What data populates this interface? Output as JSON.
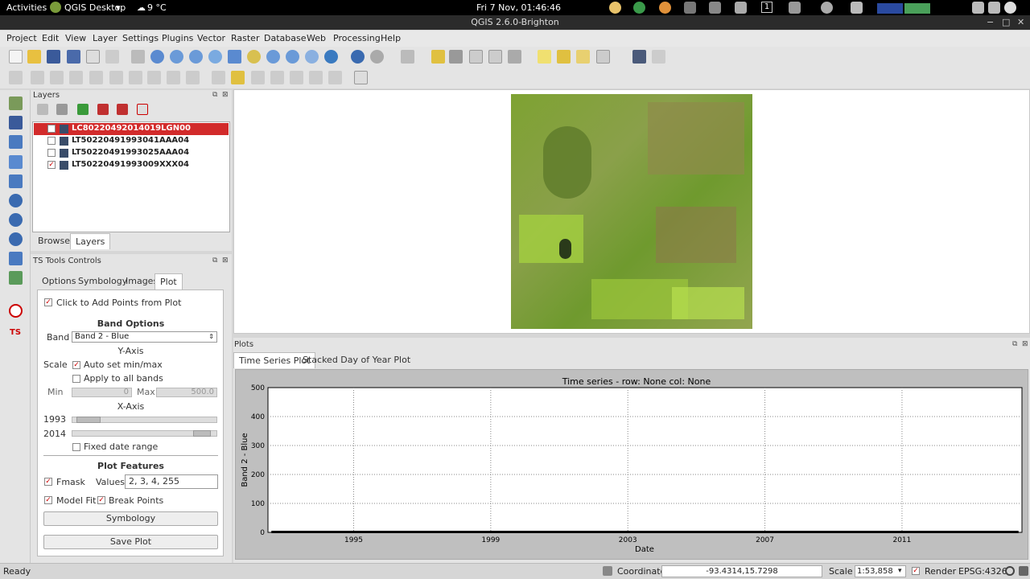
{
  "topbar": {
    "activities": "Activities",
    "app_menu": "QGIS Desktop",
    "weather": "9 °C",
    "clock": "Fri  7 Nov, 01:46:46",
    "workspace": "1"
  },
  "window": {
    "title": "QGIS 2.6.0-Brighton"
  },
  "menu": [
    "Project",
    "Edit",
    "View",
    "Layer",
    "Settings",
    "Plugins",
    "Vector",
    "Raster",
    "Database",
    "Web",
    "Processing",
    "Help"
  ],
  "layers_panel": {
    "title": "Layers",
    "items": [
      {
        "name": "LC80220492014019LGN00",
        "checked": false,
        "selected": true
      },
      {
        "name": "LT50220491993041AAA04",
        "checked": false,
        "selected": false
      },
      {
        "name": "LT50220491993025AAA04",
        "checked": false,
        "selected": false
      },
      {
        "name": "LT50220491993009XXX04",
        "checked": true,
        "selected": false
      }
    ],
    "tabs": [
      "Browser",
      "Layers"
    ]
  },
  "ts_tools": {
    "title": "TS Tools Controls",
    "tabs": [
      "Options",
      "Symbology",
      "Images",
      "Plot"
    ],
    "click_add_points": "Click to Add Points from Plot",
    "band_options": "Band Options",
    "band_label": "Band",
    "band_value": "Band 2 - Blue",
    "y_axis": "Y-Axis",
    "scale_label": "Scale",
    "auto_set": "Auto set min/max",
    "apply_all": "Apply to all bands",
    "min_label": "Min",
    "min_value": "0",
    "max_label": "Max",
    "max_value": "500.0",
    "x_axis": "X-Axis",
    "start_year": "1993",
    "end_year": "2014",
    "start_fraction": 0.0,
    "end_fraction": 1.0,
    "fixed_date": "Fixed date range",
    "plot_features": "Plot Features",
    "fmask": "Fmask",
    "values_label": "Values",
    "values": "2, 3, 4, 255",
    "model_fit": "Model Fit",
    "break_points": "Break Points",
    "symbology_btn": "Symbology",
    "save_plot_btn": "Save Plot"
  },
  "plots": {
    "title": "Plots",
    "tabs": [
      "Time Series Plot",
      "Stacked Day of Year Plot"
    ]
  },
  "chart_data": {
    "type": "scatter",
    "title": "Time series - row: None col: None",
    "xlabel": "Date",
    "ylabel": "Band 2 - Blue",
    "xlim": [
      1992.5,
      2014.5
    ],
    "ylim": [
      0,
      500
    ],
    "x_ticks": [
      "1995",
      "1999",
      "2003",
      "2007",
      "2011"
    ],
    "x_tick_values": [
      1995,
      1999,
      2003,
      2007,
      2011
    ],
    "y_ticks": [
      "0",
      "100",
      "200",
      "300",
      "400",
      "500"
    ],
    "y_tick_values": [
      0,
      100,
      200,
      300,
      400,
      500
    ],
    "grid": true,
    "series": [
      {
        "x_range": [
          1992.6,
          2014.4
        ],
        "y": 0
      }
    ]
  },
  "statusbar": {
    "ready": "Ready",
    "coordinate_label": "Coordinate:",
    "coordinate": "-93.4314,15.7298",
    "scale_label": "Scale",
    "scale": "1:53,858",
    "render": "Render",
    "crs": "EPSG:4326"
  },
  "colors": {
    "selection": "#d22b2b",
    "accent_red": "#c00000"
  }
}
